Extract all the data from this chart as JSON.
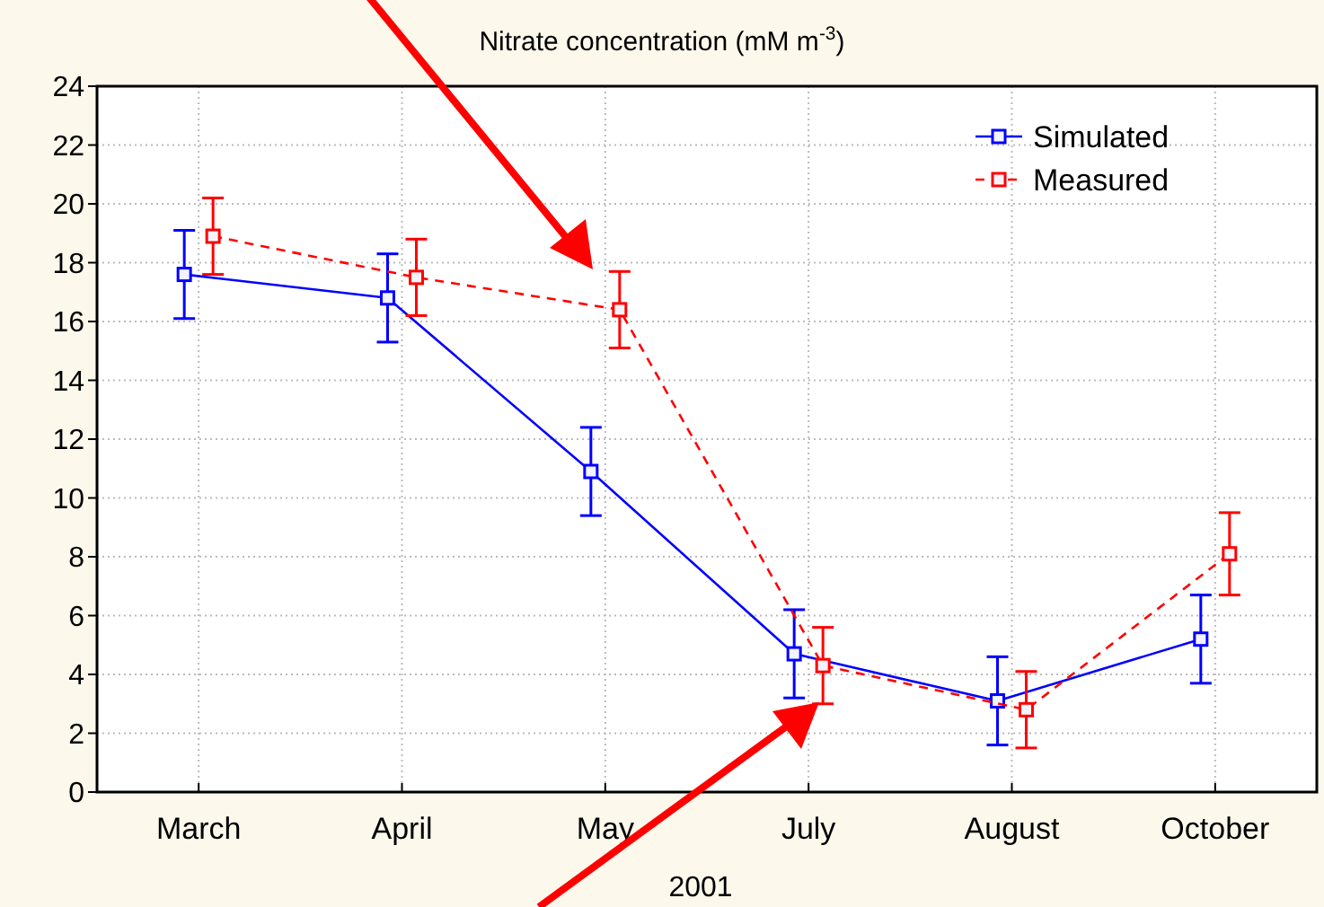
{
  "chart_data": {
    "type": "line",
    "title": "Nitrate concentration (mM m$^{-3}$)",
    "xlabel": "2001",
    "categories": [
      "March",
      "April",
      "May",
      "July",
      "August",
      "October"
    ],
    "ylim": [
      0,
      24
    ],
    "yticks": [
      0,
      2,
      4,
      6,
      8,
      10,
      12,
      14,
      16,
      18,
      20,
      22,
      24
    ],
    "grid": true,
    "legend": "top right",
    "marker": "square",
    "series": [
      {
        "name": "Simulated",
        "color": "#0000ff",
        "line_style": "solid",
        "values": [
          17.6,
          16.8,
          10.9,
          4.7,
          3.1,
          5.2
        ],
        "errors": [
          1.5,
          1.5,
          1.5,
          1.5,
          1.5,
          1.5
        ]
      },
      {
        "name": "Measured",
        "color": "#ff0000",
        "line_style": "dashed",
        "values": [
          18.9,
          17.5,
          16.4,
          4.3,
          2.8,
          8.1
        ],
        "errors": [
          1.3,
          1.3,
          1.3,
          1.3,
          1.3,
          1.4
        ]
      }
    ]
  }
}
